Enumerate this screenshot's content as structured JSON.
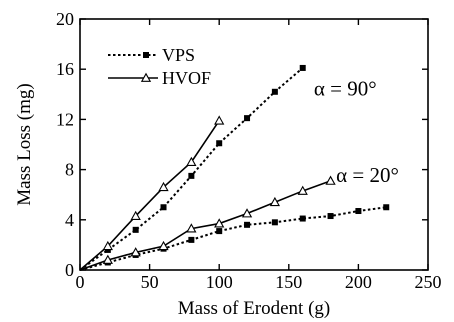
{
  "chart_data": {
    "type": "line",
    "xlabel": "Mass of Erodent (g)",
    "ylabel": "Mass Loss (mg)",
    "xlim": [
      0,
      250
    ],
    "ylim": [
      0,
      20
    ],
    "xticks": [
      0,
      50,
      100,
      150,
      200,
      250
    ],
    "yticks": [
      0,
      4,
      8,
      12,
      16,
      20
    ],
    "grid": false,
    "legend": {
      "placement": "top-left"
    },
    "series": [
      {
        "name": "VPS",
        "style": "dotted",
        "marker": "filled-square",
        "color": "#000000",
        "group": "90",
        "x": [
          0,
          20,
          40,
          60,
          80,
          100,
          120,
          140,
          160
        ],
        "y": [
          0,
          1.6,
          3.2,
          5.0,
          7.5,
          10.1,
          12.1,
          14.2,
          16.1
        ]
      },
      {
        "name": "HVOF",
        "style": "solid",
        "marker": "open-triangle",
        "color": "#000000",
        "group": "90",
        "x": [
          0,
          20,
          40,
          60,
          80,
          100
        ],
        "y": [
          0,
          1.9,
          4.3,
          6.6,
          8.6,
          11.9
        ]
      },
      {
        "name": "VPS",
        "style": "dotted",
        "marker": "filled-square",
        "color": "#000000",
        "group": "20",
        "x": [
          0,
          20,
          40,
          60,
          80,
          100,
          120,
          140,
          160,
          180,
          200,
          220
        ],
        "y": [
          0,
          0.6,
          1.2,
          1.7,
          2.4,
          3.1,
          3.6,
          3.8,
          4.1,
          4.3,
          4.7,
          5.0
        ]
      },
      {
        "name": "HVOF",
        "style": "solid",
        "marker": "open-triangle",
        "color": "#000000",
        "group": "20",
        "x": [
          0,
          20,
          40,
          60,
          80,
          100,
          120,
          140,
          160,
          180
        ],
        "y": [
          0,
          0.8,
          1.4,
          1.9,
          3.3,
          3.7,
          4.5,
          5.4,
          6.3,
          7.1
        ]
      }
    ],
    "legend_entries": [
      {
        "label": "VPS",
        "style": "dotted",
        "marker": "filled-square"
      },
      {
        "label": "HVOF",
        "style": "solid",
        "marker": "open-triangle"
      }
    ],
    "annotations": [
      {
        "text": "α = 90°",
        "x": 168,
        "y": 13.9
      },
      {
        "text": "α = 20°",
        "x": 184,
        "y": 7.0
      }
    ]
  }
}
